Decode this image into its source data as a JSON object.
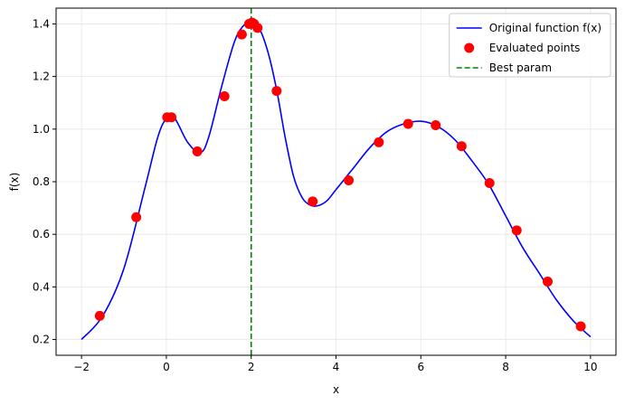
{
  "chart_data": {
    "type": "line",
    "title": "",
    "xlabel": "x",
    "ylabel": "f(x)",
    "xlim": [
      -2.6,
      10.6
    ],
    "ylim": [
      0.14,
      1.46
    ],
    "xticks": [
      -2,
      0,
      2,
      4,
      6,
      8,
      10
    ],
    "yticks": [
      0.2,
      0.4,
      0.6,
      0.8,
      1.0,
      1.2,
      1.4
    ],
    "grid": true,
    "legend_position": "top-right",
    "series": [
      {
        "name": "Original function f(x)",
        "kind": "line",
        "color": "#0000ff",
        "x": [
          -2.0,
          -1.5,
          -1.0,
          -0.5,
          -0.2,
          0.0,
          0.2,
          0.5,
          0.8,
          1.0,
          1.3,
          1.6,
          1.8,
          2.0,
          2.2,
          2.4,
          2.6,
          2.8,
          3.0,
          3.2,
          3.4,
          3.6,
          3.8,
          4.0,
          4.4,
          4.8,
          5.2,
          5.6,
          6.0,
          6.4,
          6.8,
          7.2,
          7.6,
          8.0,
          8.4,
          8.8,
          9.2,
          9.6,
          10.0
        ],
        "y": [
          0.2,
          0.29,
          0.47,
          0.78,
          0.97,
          1.04,
          1.04,
          0.95,
          0.91,
          0.97,
          1.16,
          1.33,
          1.39,
          1.41,
          1.38,
          1.29,
          1.15,
          0.97,
          0.82,
          0.74,
          0.71,
          0.71,
          0.73,
          0.77,
          0.85,
          0.93,
          0.99,
          1.02,
          1.03,
          1.01,
          0.96,
          0.88,
          0.79,
          0.67,
          0.55,
          0.45,
          0.35,
          0.27,
          0.21
        ]
      },
      {
        "name": "Evaluated points",
        "kind": "scatter",
        "color": "#ff0000",
        "x": [
          -1.57,
          -0.71,
          0.02,
          0.12,
          0.73,
          1.37,
          1.78,
          1.95,
          2.02,
          2.07,
          2.15,
          2.6,
          3.45,
          4.3,
          5.01,
          5.7,
          6.35,
          6.96,
          7.62,
          8.26,
          8.99,
          9.77
        ],
        "y": [
          0.29,
          0.665,
          1.045,
          1.045,
          0.915,
          1.125,
          1.36,
          1.4,
          1.405,
          1.4,
          1.385,
          1.145,
          0.725,
          0.805,
          0.95,
          1.02,
          1.015,
          0.935,
          0.795,
          0.615,
          0.42,
          0.25
        ]
      },
      {
        "name": "Best param",
        "kind": "vline",
        "color": "#008000",
        "x": 2.0
      }
    ]
  }
}
